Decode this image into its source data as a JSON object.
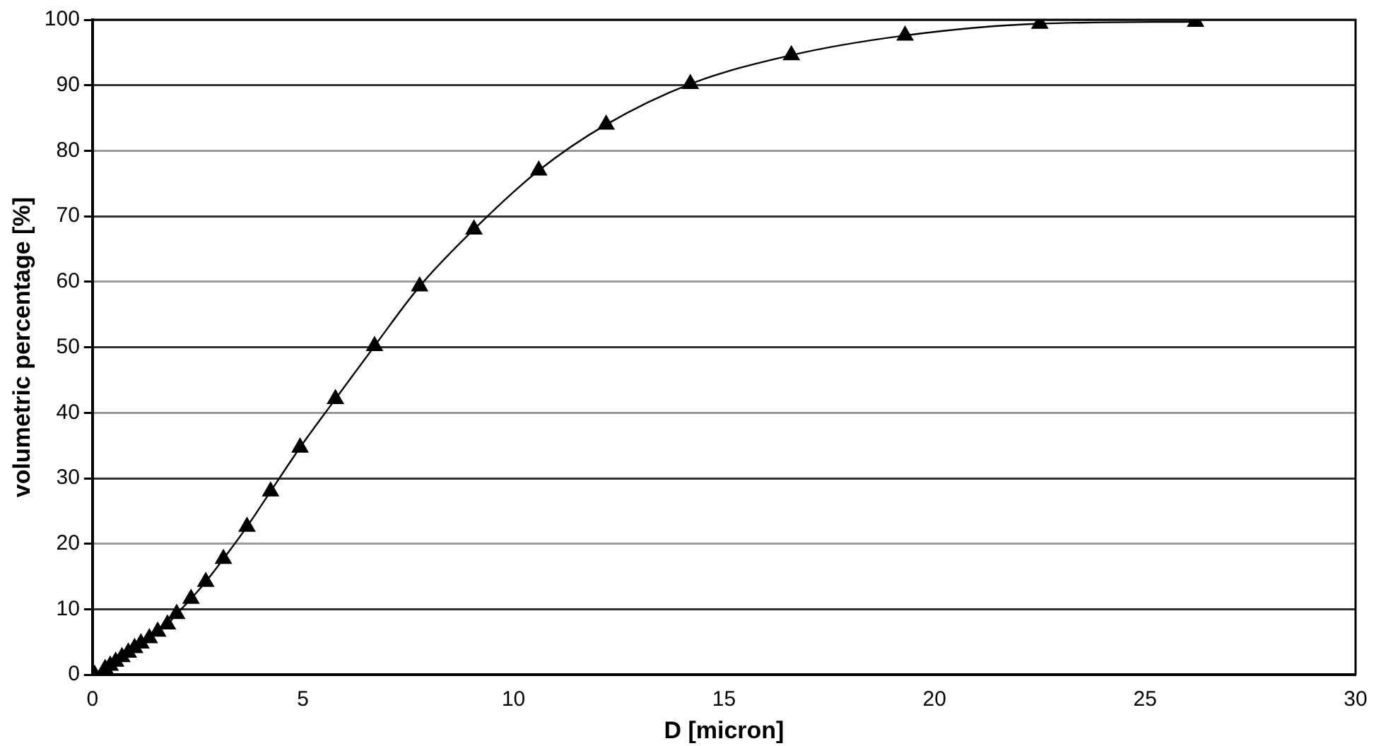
{
  "chart_data": {
    "type": "line",
    "xlabel": "D [micron]",
    "ylabel": "volumetric percentage [%]",
    "x": [
      0.05,
      0.3,
      0.42,
      0.55,
      0.7,
      0.85,
      1.0,
      1.15,
      1.35,
      1.55,
      1.78,
      2.0,
      2.34,
      2.69,
      3.11,
      3.67,
      4.23,
      4.93,
      5.77,
      6.7,
      7.77,
      9.06,
      10.6,
      12.2,
      14.2,
      16.6,
      19.3,
      22.5,
      26.2
    ],
    "series": [
      {
        "color": "#000000",
        "values": [
          0,
          0.9,
          1.4,
          2.0,
          2.7,
          3.4,
          4.1,
          4.8,
          5.6,
          6.6,
          7.7,
          9.3,
          11.6,
          14.2,
          17.7,
          22.6,
          28,
          34.7,
          42.1,
          50.2,
          59.3,
          68,
          77,
          84,
          90.2,
          94.6,
          97.6,
          99.4,
          99.7
        ]
      }
    ],
    "xlim": [
      0,
      30
    ],
    "xticks": [
      0,
      5,
      10,
      15,
      20,
      25,
      30
    ],
    "ylim": [
      0,
      100
    ],
    "yticks": [
      0,
      10,
      20,
      30,
      40,
      50,
      60,
      70,
      80,
      90,
      100
    ],
    "grid": "y",
    "legend": false,
    "marker": "triangle",
    "line_style": "solid"
  }
}
